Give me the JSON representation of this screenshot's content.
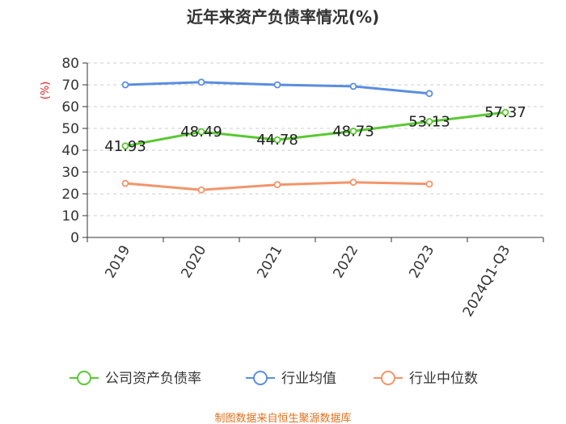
{
  "chart_data": {
    "type": "line",
    "title": "近年来资产负债率情况(%)",
    "unit_label": "(%)",
    "categories": [
      "2019",
      "2020",
      "2021",
      "2022",
      "2023",
      "2024Q1-Q3"
    ],
    "ylim": [
      0,
      80
    ],
    "yticks": [
      "0",
      "10",
      "20",
      "30",
      "40",
      "50",
      "60",
      "70",
      "80"
    ],
    "grid": true,
    "legend_position": "bottom",
    "series": [
      {
        "name": "公司资产负债率",
        "color": "#5ac832",
        "values": [
          41.93,
          48.49,
          44.78,
          48.73,
          53.13,
          57.37
        ],
        "labels": [
          "41.93",
          "48.49",
          "44.78",
          "48.73",
          "53.13",
          "57.37"
        ]
      },
      {
        "name": "行业均值",
        "color": "#5a8ee0",
        "values": [
          70.0,
          71.2,
          70.0,
          69.3,
          66.0,
          null
        ]
      },
      {
        "name": "行业中位数",
        "color": "#f2956a",
        "values": [
          24.8,
          21.8,
          24.2,
          25.3,
          24.5,
          null
        ]
      }
    ],
    "source": "制图数据来自恒生聚源数据库"
  }
}
